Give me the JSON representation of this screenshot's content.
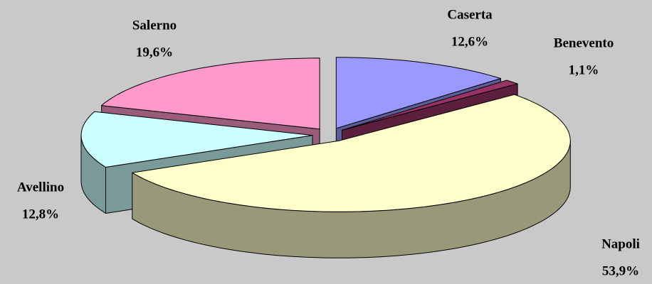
{
  "chart_data": {
    "type": "pie3d",
    "categories": [
      "Caserta",
      "Benevento",
      "Napoli",
      "Avellino",
      "Salerno"
    ],
    "values": [
      12.6,
      1.1,
      53.9,
      12.8,
      19.6
    ],
    "value_labels": [
      "12,6%",
      "1,1%",
      "53,9%",
      "12,8%",
      "19,6%"
    ],
    "colors": [
      "#9999ff",
      "#993366",
      "#ffffcc",
      "#ccffff",
      "#ff99cc"
    ]
  }
}
